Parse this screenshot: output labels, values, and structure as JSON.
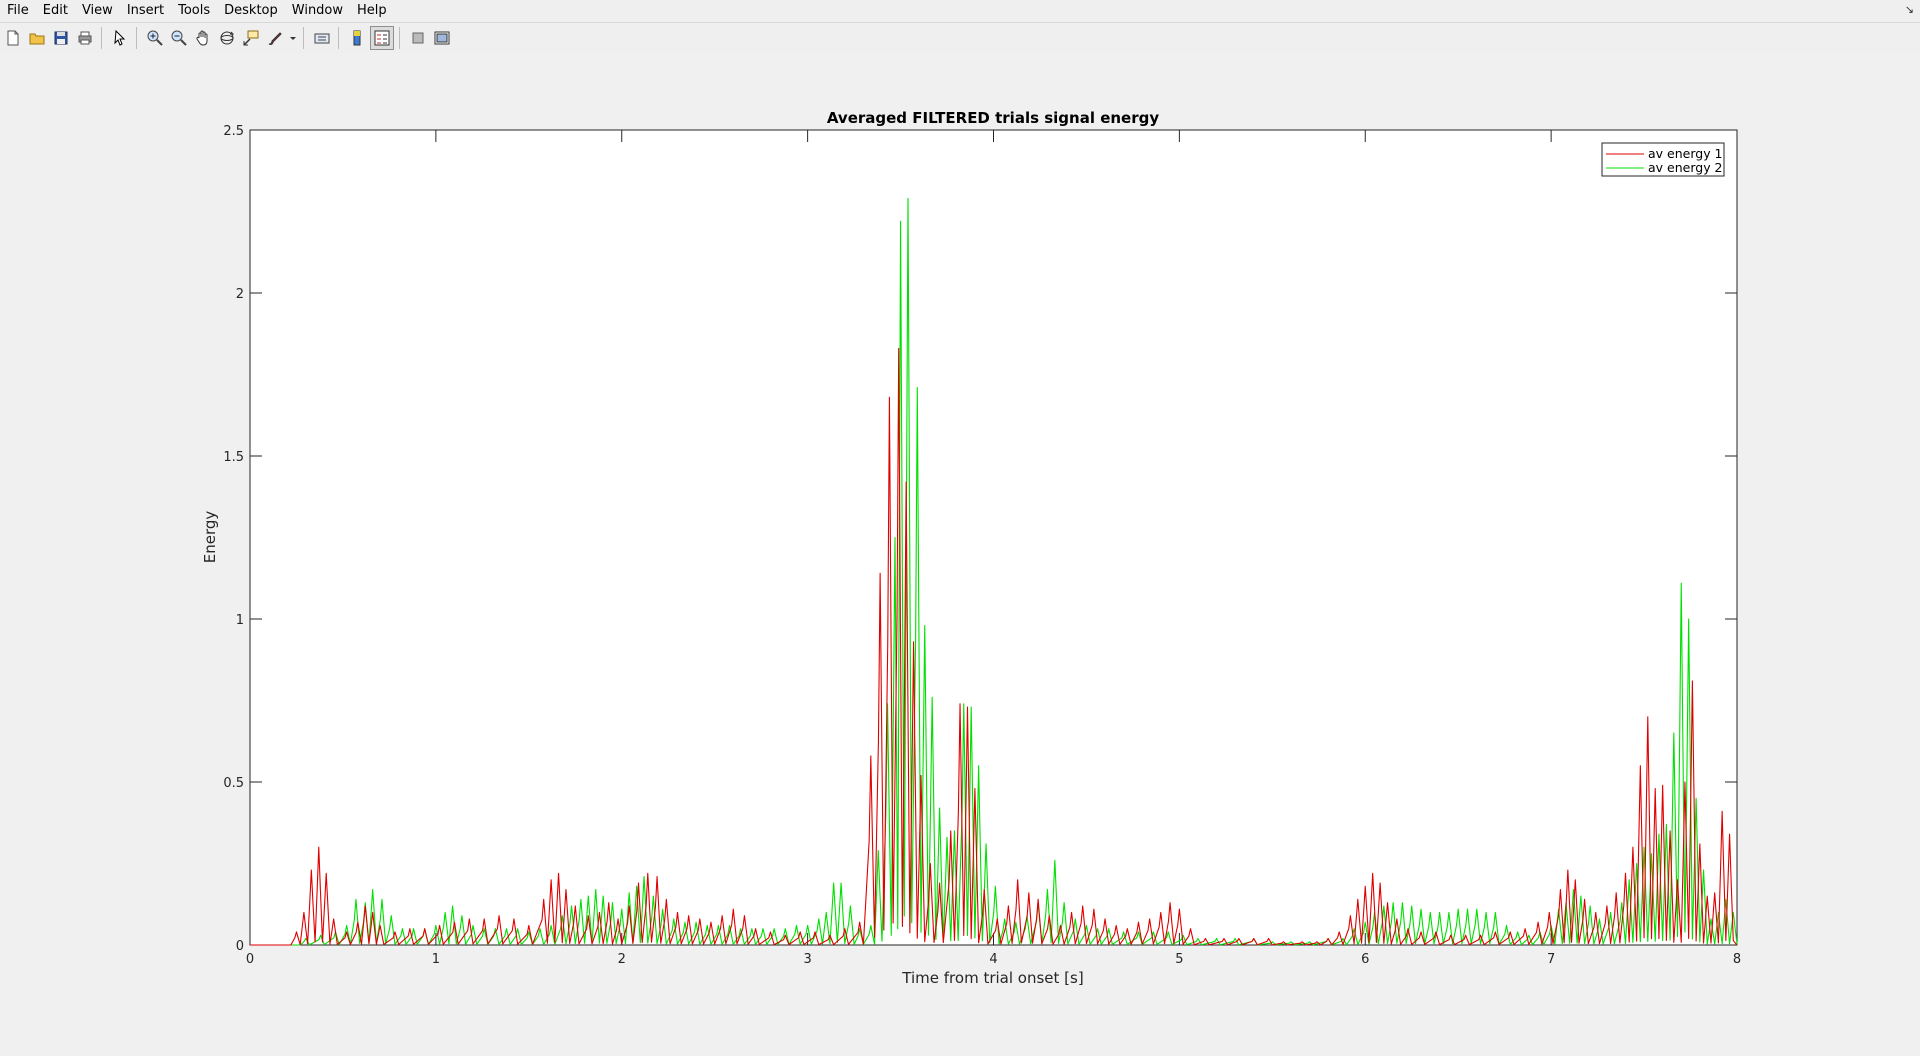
{
  "menubar": {
    "items": [
      {
        "label": "File"
      },
      {
        "label": "Edit"
      },
      {
        "label": "View"
      },
      {
        "label": "Insert"
      },
      {
        "label": "Tools"
      },
      {
        "label": "Desktop"
      },
      {
        "label": "Window"
      },
      {
        "label": "Help"
      }
    ]
  },
  "toolbar": {
    "buttons": [
      "new-figure-icon",
      "open-file-icon",
      "save-icon",
      "print-icon",
      "edit-plot-arrow-icon",
      "zoom-in-icon",
      "zoom-out-icon",
      "pan-hand-icon",
      "rotate-3d-icon",
      "data-cursor-icon",
      "brush-icon",
      "link-plot-icon",
      "colorbar-icon",
      "legend-icon",
      "hide-plot-tools-icon",
      "show-plot-tools-icon"
    ]
  },
  "colors": {
    "series1": "#e00000",
    "series2": "#00e000",
    "background": "#f0f0f0"
  },
  "chart_data": {
    "type": "line",
    "title": "Averaged FILTERED trials signal energy",
    "xlabel": "Time from trial onset [s]",
    "ylabel": "Energy",
    "xlim": [
      0,
      8
    ],
    "ylim": [
      0,
      2.5
    ],
    "xticks": [
      "0",
      "1",
      "2",
      "3",
      "4",
      "5",
      "6",
      "7",
      "8"
    ],
    "yticks": [
      "0",
      "0.5",
      "1",
      "1.5",
      "2",
      "2.5"
    ],
    "grid": false,
    "legend_position": "top-right",
    "series": [
      {
        "name": "av energy 1",
        "color": "#e00000",
        "peaks": [
          [
            0.25,
            0.04
          ],
          [
            0.29,
            0.1
          ],
          [
            0.33,
            0.23
          ],
          [
            0.37,
            0.3
          ],
          [
            0.41,
            0.22
          ],
          [
            0.45,
            0.08
          ],
          [
            0.52,
            0.04
          ],
          [
            0.58,
            0.07
          ],
          [
            0.62,
            0.12
          ],
          [
            0.66,
            0.1
          ],
          [
            0.7,
            0.06
          ],
          [
            0.78,
            0.04
          ],
          [
            0.86,
            0.05
          ],
          [
            0.94,
            0.05
          ],
          [
            1.02,
            0.06
          ],
          [
            1.1,
            0.07
          ],
          [
            1.18,
            0.08
          ],
          [
            1.26,
            0.08
          ],
          [
            1.34,
            0.09
          ],
          [
            1.42,
            0.08
          ],
          [
            1.5,
            0.06
          ],
          [
            1.58,
            0.14
          ],
          [
            1.62,
            0.2
          ],
          [
            1.66,
            0.22
          ],
          [
            1.7,
            0.17
          ],
          [
            1.75,
            0.12
          ],
          [
            1.82,
            0.09
          ],
          [
            1.88,
            0.1
          ],
          [
            1.93,
            0.13
          ],
          [
            1.98,
            0.08
          ],
          [
            2.04,
            0.12
          ],
          [
            2.09,
            0.19
          ],
          [
            2.14,
            0.22
          ],
          [
            2.19,
            0.21
          ],
          [
            2.24,
            0.14
          ],
          [
            2.3,
            0.1
          ],
          [
            2.36,
            0.09
          ],
          [
            2.42,
            0.08
          ],
          [
            2.48,
            0.07
          ],
          [
            2.54,
            0.09
          ],
          [
            2.6,
            0.11
          ],
          [
            2.66,
            0.09
          ],
          [
            2.72,
            0.05
          ],
          [
            2.8,
            0.04
          ],
          [
            2.88,
            0.03
          ],
          [
            2.96,
            0.04
          ],
          [
            3.04,
            0.04
          ],
          [
            3.12,
            0.03
          ],
          [
            3.2,
            0.05
          ],
          [
            3.28,
            0.07
          ],
          [
            3.34,
            0.58
          ],
          [
            3.39,
            1.14
          ],
          [
            3.44,
            1.68
          ],
          [
            3.49,
            1.83
          ],
          [
            3.53,
            1.42
          ],
          [
            3.57,
            0.93
          ],
          [
            3.61,
            0.52
          ],
          [
            3.66,
            0.25
          ],
          [
            3.71,
            0.19
          ],
          [
            3.77,
            0.35
          ],
          [
            3.82,
            0.74
          ],
          [
            3.86,
            0.73
          ],
          [
            3.9,
            0.48
          ],
          [
            3.95,
            0.17
          ],
          [
            4.02,
            0.08
          ],
          [
            4.08,
            0.12
          ],
          [
            4.13,
            0.2
          ],
          [
            4.19,
            0.16
          ],
          [
            4.24,
            0.14
          ],
          [
            4.3,
            0.09
          ],
          [
            4.36,
            0.06
          ],
          [
            4.42,
            0.1
          ],
          [
            4.48,
            0.12
          ],
          [
            4.54,
            0.11
          ],
          [
            4.6,
            0.08
          ],
          [
            4.66,
            0.06
          ],
          [
            4.72,
            0.05
          ],
          [
            4.78,
            0.07
          ],
          [
            4.84,
            0.08
          ],
          [
            4.9,
            0.1
          ],
          [
            4.95,
            0.13
          ],
          [
            5.0,
            0.11
          ],
          [
            5.06,
            0.05
          ],
          [
            5.14,
            0.02
          ],
          [
            5.24,
            0.02
          ],
          [
            5.32,
            0.02
          ],
          [
            5.4,
            0.02
          ],
          [
            5.48,
            0.02
          ],
          [
            5.56,
            0.01
          ],
          [
            5.66,
            0.01
          ],
          [
            5.74,
            0.01
          ],
          [
            5.8,
            0.02
          ],
          [
            5.86,
            0.04
          ],
          [
            5.92,
            0.09
          ],
          [
            5.96,
            0.14
          ],
          [
            6.0,
            0.18
          ],
          [
            6.04,
            0.22
          ],
          [
            6.08,
            0.19
          ],
          [
            6.12,
            0.13
          ],
          [
            6.17,
            0.08
          ],
          [
            6.23,
            0.05
          ],
          [
            6.3,
            0.04
          ],
          [
            6.38,
            0.04
          ],
          [
            6.46,
            0.03
          ],
          [
            6.54,
            0.03
          ],
          [
            6.62,
            0.03
          ],
          [
            6.7,
            0.04
          ],
          [
            6.78,
            0.04
          ],
          [
            6.86,
            0.05
          ],
          [
            6.93,
            0.07
          ],
          [
            6.99,
            0.1
          ],
          [
            7.05,
            0.17
          ],
          [
            7.09,
            0.23
          ],
          [
            7.13,
            0.2
          ],
          [
            7.18,
            0.14
          ],
          [
            7.24,
            0.1
          ],
          [
            7.3,
            0.12
          ],
          [
            7.35,
            0.16
          ],
          [
            7.4,
            0.22
          ],
          [
            7.44,
            0.3
          ],
          [
            7.48,
            0.55
          ],
          [
            7.52,
            0.7
          ],
          [
            7.56,
            0.48
          ],
          [
            7.6,
            0.49
          ],
          [
            7.64,
            0.35
          ],
          [
            7.68,
            0.2
          ],
          [
            7.72,
            0.5
          ],
          [
            7.76,
            0.81
          ],
          [
            7.8,
            0.31
          ],
          [
            7.84,
            0.15
          ],
          [
            7.88,
            0.16
          ],
          [
            7.92,
            0.41
          ],
          [
            7.96,
            0.34
          ]
        ]
      },
      {
        "name": "av energy 2",
        "color": "#00e000",
        "peaks": [
          [
            0.3,
            0.02
          ],
          [
            0.38,
            0.03
          ],
          [
            0.46,
            0.04
          ],
          [
            0.52,
            0.06
          ],
          [
            0.57,
            0.14
          ],
          [
            0.62,
            0.13
          ],
          [
            0.66,
            0.17
          ],
          [
            0.71,
            0.14
          ],
          [
            0.76,
            0.09
          ],
          [
            0.82,
            0.05
          ],
          [
            0.88,
            0.05
          ],
          [
            0.94,
            0.05
          ],
          [
            1.0,
            0.06
          ],
          [
            1.05,
            0.1
          ],
          [
            1.09,
            0.12
          ],
          [
            1.14,
            0.09
          ],
          [
            1.2,
            0.06
          ],
          [
            1.26,
            0.05
          ],
          [
            1.32,
            0.05
          ],
          [
            1.38,
            0.05
          ],
          [
            1.44,
            0.05
          ],
          [
            1.5,
            0.04
          ],
          [
            1.56,
            0.05
          ],
          [
            1.62,
            0.06
          ],
          [
            1.68,
            0.09
          ],
          [
            1.73,
            0.12
          ],
          [
            1.78,
            0.14
          ],
          [
            1.82,
            0.15
          ],
          [
            1.86,
            0.17
          ],
          [
            1.9,
            0.15
          ],
          [
            1.95,
            0.13
          ],
          [
            2.0,
            0.11
          ],
          [
            2.04,
            0.16
          ],
          [
            2.08,
            0.18
          ],
          [
            2.12,
            0.21
          ],
          [
            2.17,
            0.15
          ],
          [
            2.22,
            0.11
          ],
          [
            2.28,
            0.08
          ],
          [
            2.34,
            0.07
          ],
          [
            2.4,
            0.07
          ],
          [
            2.46,
            0.06
          ],
          [
            2.52,
            0.06
          ],
          [
            2.58,
            0.06
          ],
          [
            2.64,
            0.05
          ],
          [
            2.7,
            0.05
          ],
          [
            2.76,
            0.05
          ],
          [
            2.82,
            0.05
          ],
          [
            2.88,
            0.05
          ],
          [
            2.94,
            0.06
          ],
          [
            3.0,
            0.06
          ],
          [
            3.06,
            0.08
          ],
          [
            3.1,
            0.1
          ],
          [
            3.14,
            0.19
          ],
          [
            3.18,
            0.19
          ],
          [
            3.23,
            0.12
          ],
          [
            3.28,
            0.05
          ],
          [
            3.34,
            0.06
          ],
          [
            3.38,
            0.29
          ],
          [
            3.43,
            0.74
          ],
          [
            3.47,
            1.25
          ],
          [
            3.5,
            2.22
          ],
          [
            3.54,
            2.29
          ],
          [
            3.59,
            1.71
          ],
          [
            3.63,
            0.98
          ],
          [
            3.67,
            0.76
          ],
          [
            3.71,
            0.42
          ],
          [
            3.75,
            0.33
          ],
          [
            3.79,
            0.35
          ],
          [
            3.84,
            0.74
          ],
          [
            3.88,
            0.73
          ],
          [
            3.92,
            0.55
          ],
          [
            3.96,
            0.31
          ],
          [
            4.01,
            0.18
          ],
          [
            4.06,
            0.08
          ],
          [
            4.12,
            0.07
          ],
          [
            4.18,
            0.09
          ],
          [
            4.24,
            0.13
          ],
          [
            4.29,
            0.17
          ],
          [
            4.33,
            0.26
          ],
          [
            4.38,
            0.13
          ],
          [
            4.44,
            0.08
          ],
          [
            4.5,
            0.06
          ],
          [
            4.56,
            0.05
          ],
          [
            4.62,
            0.05
          ],
          [
            4.7,
            0.04
          ],
          [
            4.78,
            0.04
          ],
          [
            4.86,
            0.04
          ],
          [
            4.94,
            0.04
          ],
          [
            5.02,
            0.03
          ],
          [
            5.1,
            0.02
          ],
          [
            5.2,
            0.02
          ],
          [
            5.3,
            0.02
          ],
          [
            5.4,
            0.02
          ],
          [
            5.5,
            0.01
          ],
          [
            5.6,
            0.01
          ],
          [
            5.7,
            0.01
          ],
          [
            5.8,
            0.02
          ],
          [
            5.88,
            0.02
          ],
          [
            5.94,
            0.05
          ],
          [
            6.0,
            0.07
          ],
          [
            6.05,
            0.1
          ],
          [
            6.1,
            0.12
          ],
          [
            6.15,
            0.13
          ],
          [
            6.2,
            0.13
          ],
          [
            6.25,
            0.12
          ],
          [
            6.3,
            0.11
          ],
          [
            6.35,
            0.1
          ],
          [
            6.4,
            0.1
          ],
          [
            6.45,
            0.1
          ],
          [
            6.5,
            0.11
          ],
          [
            6.55,
            0.11
          ],
          [
            6.6,
            0.11
          ],
          [
            6.65,
            0.1
          ],
          [
            6.7,
            0.1
          ],
          [
            6.76,
            0.06
          ],
          [
            6.82,
            0.04
          ],
          [
            6.88,
            0.03
          ],
          [
            6.94,
            0.04
          ],
          [
            7.0,
            0.06
          ],
          [
            7.04,
            0.11
          ],
          [
            7.08,
            0.13
          ],
          [
            7.12,
            0.17
          ],
          [
            7.16,
            0.15
          ],
          [
            7.21,
            0.12
          ],
          [
            7.26,
            0.08
          ],
          [
            7.32,
            0.1
          ],
          [
            7.38,
            0.13
          ],
          [
            7.42,
            0.2
          ],
          [
            7.46,
            0.25
          ],
          [
            7.5,
            0.3
          ],
          [
            7.54,
            0.28
          ],
          [
            7.58,
            0.34
          ],
          [
            7.62,
            0.37
          ],
          [
            7.66,
            0.65
          ],
          [
            7.7,
            1.11
          ],
          [
            7.74,
            1.0
          ],
          [
            7.78,
            0.45
          ],
          [
            7.82,
            0.23
          ],
          [
            7.86,
            0.08
          ],
          [
            7.9,
            0.1
          ],
          [
            7.94,
            0.14
          ],
          [
            7.98,
            0.1
          ]
        ]
      }
    ]
  }
}
